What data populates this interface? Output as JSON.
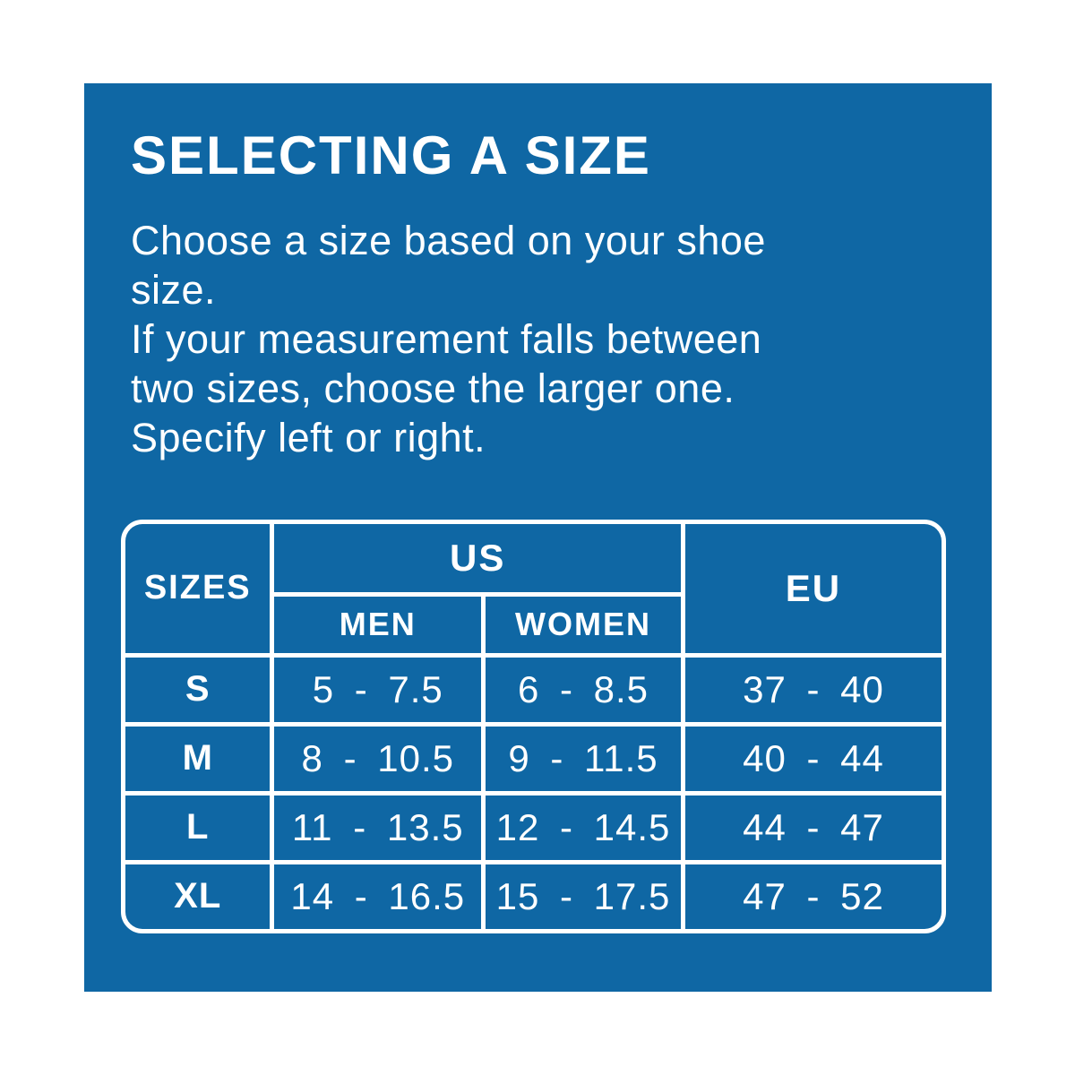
{
  "colors": {
    "page_background": "#ffffff",
    "panel_background": "#0f67a4",
    "text": "#ffffff",
    "table_lines": "#ffffff"
  },
  "title": "SELECTING A SIZE",
  "intro_lines": [
    "Choose a size based on your shoe",
    "size.",
    "If your measurement falls between",
    "two sizes, choose the larger one.",
    "Specify left or right."
  ],
  "chart_data": {
    "type": "table",
    "title": "SELECTING A SIZE",
    "header": {
      "sizes": "SIZES",
      "us_group": "US",
      "men": "MEN",
      "women": "WOMEN",
      "eu": "EU"
    },
    "columns": [
      "SIZES",
      "US MEN",
      "US WOMEN",
      "EU"
    ],
    "rows": [
      {
        "size": "S",
        "us_men": "5 - 7.5",
        "us_women": "6 - 8.5",
        "eu": "37 - 40"
      },
      {
        "size": "M",
        "us_men": "8 - 10.5",
        "us_women": "9 - 11.5",
        "eu": "40 - 44"
      },
      {
        "size": "L",
        "us_men": "11 - 13.5",
        "us_women": "12 - 14.5",
        "eu": "44 - 47"
      },
      {
        "size": "XL",
        "us_men": "14 - 16.5",
        "us_women": "15 - 17.5",
        "eu": "47 - 52"
      }
    ]
  }
}
